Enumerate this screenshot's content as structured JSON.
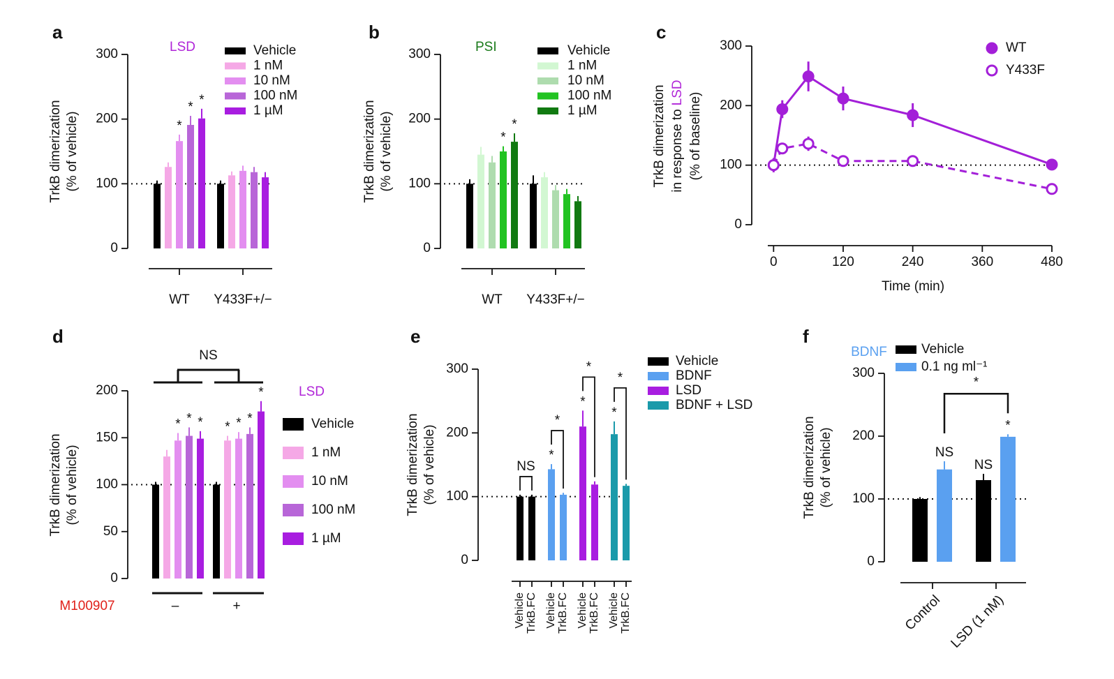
{
  "chart_data": [
    {
      "type": "bar",
      "panel": "a",
      "annotation": "LSD",
      "annotation_color": "#b025d8",
      "ylabel": [
        "TrkB dimerization",
        "(% of vehicle)"
      ],
      "categories": [
        "WT",
        "Y433F+/−"
      ],
      "ylim": [
        0,
        300
      ],
      "yticks": [
        0,
        100,
        200,
        300
      ],
      "reference_line": 100,
      "series": [
        {
          "name": "Vehicle",
          "color": "#000000",
          "values": [
            100,
            100
          ],
          "errors": [
            5,
            5
          ],
          "significance": [
            null,
            null
          ]
        },
        {
          "name": "1 nM",
          "color": "#f5a8e6",
          "values": [
            126,
            113
          ],
          "errors": [
            7,
            6
          ],
          "significance": [
            null,
            null
          ]
        },
        {
          "name": "10 nM",
          "color": "#e38ef0",
          "values": [
            166,
            120
          ],
          "errors": [
            10,
            8
          ],
          "significance": [
            "*",
            null
          ]
        },
        {
          "name": "100 nM",
          "color": "#b866d8",
          "values": [
            191,
            118
          ],
          "errors": [
            14,
            8
          ],
          "significance": [
            "*",
            null
          ]
        },
        {
          "name": "1 µM",
          "color": "#a81de0",
          "values": [
            201,
            110
          ],
          "errors": [
            15,
            8
          ],
          "significance": [
            "*",
            null
          ]
        }
      ]
    },
    {
      "type": "bar",
      "panel": "b",
      "annotation": "PSI",
      "annotation_color": "#1a7a1a",
      "ylabel": [
        "TrkB dimerization",
        "(% of vehicle)"
      ],
      "categories": [
        "WT",
        "Y433F+/−"
      ],
      "ylim": [
        0,
        300
      ],
      "yticks": [
        0,
        100,
        200,
        300
      ],
      "reference_line": 100,
      "series": [
        {
          "name": "Vehicle",
          "color": "#000000",
          "values": [
            100,
            100
          ],
          "errors": [
            7,
            13
          ],
          "significance": [
            null,
            null
          ]
        },
        {
          "name": "1 nM",
          "color": "#d2f7d2",
          "values": [
            145,
            110
          ],
          "errors": [
            12,
            8
          ],
          "significance": [
            null,
            null
          ]
        },
        {
          "name": "10 nM",
          "color": "#aedcae",
          "values": [
            133,
            90
          ],
          "errors": [
            10,
            8
          ],
          "significance": [
            null,
            null
          ]
        },
        {
          "name": "100 nM",
          "color": "#22c322",
          "values": [
            150,
            84
          ],
          "errors": [
            8,
            8
          ],
          "significance": [
            "*",
            null
          ]
        },
        {
          "name": "1 µM",
          "color": "#117a11",
          "values": [
            165,
            73
          ],
          "errors": [
            13,
            8
          ],
          "significance": [
            "*",
            null
          ]
        }
      ]
    },
    {
      "type": "line",
      "panel": "c",
      "ylabel": {
        "lines": [
          "TrkB dimerization",
          "in response to",
          "(% of baseline)"
        ],
        "highlight": "LSD",
        "highlight_color": "#b025d8"
      },
      "xlabel": "Time (min)",
      "x": [
        0,
        15,
        60,
        120,
        240,
        480
      ],
      "xlim": [
        -10,
        480
      ],
      "xticks": [
        0,
        120,
        240,
        360,
        480
      ],
      "ylim": [
        0,
        300
      ],
      "yticks": [
        0,
        100,
        200,
        300
      ],
      "reference_line": 100,
      "legend": "upper right",
      "series": [
        {
          "name": "WT",
          "color": "#a31fd8",
          "line_style": "solid",
          "marker_fill": "filled",
          "values": [
            100,
            194,
            249,
            212,
            184,
            101
          ],
          "errors": [
            12,
            15,
            25,
            20,
            20,
            5
          ]
        },
        {
          "name": "Y433F",
          "color": "#a31fd8",
          "line_style": "dashed",
          "marker_fill": "open",
          "values": [
            100,
            128,
            136,
            107,
            107,
            60
          ],
          "errors": [
            8,
            8,
            12,
            5,
            8,
            4
          ]
        }
      ]
    },
    {
      "type": "bar",
      "panel": "d",
      "annotation": "LSD",
      "annotation_color": "#b025d8",
      "ylabel": [
        "TrkB dimerization",
        "(% of vehicle)"
      ],
      "categories": [
        "–",
        "+"
      ],
      "category_title": "M100907",
      "category_title_color": "#e0201a",
      "bracket_label": "NS",
      "ylim": [
        0,
        200
      ],
      "yticks": [
        0,
        50,
        100,
        150,
        200
      ],
      "reference_line": 100,
      "series": [
        {
          "name": "Vehicle",
          "color": "#000000",
          "values": [
            100,
            100
          ],
          "errors": [
            3,
            3
          ],
          "significance": [
            null,
            null
          ]
        },
        {
          "name": "1 nM",
          "color": "#f5a8e6",
          "values": [
            130,
            147
          ],
          "errors": [
            7,
            5
          ],
          "significance": [
            null,
            "*"
          ]
        },
        {
          "name": "10 nM",
          "color": "#e38ef0",
          "values": [
            147,
            149
          ],
          "errors": [
            8,
            7
          ],
          "significance": [
            "*",
            "*"
          ]
        },
        {
          "name": "100 nM",
          "color": "#b866d8",
          "values": [
            152,
            154
          ],
          "errors": [
            9,
            7
          ],
          "significance": [
            "*",
            "*"
          ]
        },
        {
          "name": "1 µM",
          "color": "#a81de0",
          "values": [
            149,
            178
          ],
          "errors": [
            8,
            11
          ],
          "significance": [
            "*",
            "*"
          ]
        }
      ]
    },
    {
      "type": "bar",
      "panel": "e",
      "ylabel": [
        "TrkB dimerization",
        "(% of vehicle)"
      ],
      "categories": [
        "Vehicle",
        "TrkB.FC"
      ],
      "ylim": [
        0,
        300
      ],
      "yticks": [
        0,
        100,
        200,
        300
      ],
      "reference_line": 100,
      "series": [
        {
          "name": "Vehicle",
          "color": "#000000",
          "values": [
            100,
            100
          ],
          "errors": [
            3,
            3
          ],
          "significance": [
            null,
            null
          ],
          "comparison": "NS"
        },
        {
          "name": "BDNF",
          "color": "#5aa0f0",
          "values": [
            143,
            103
          ],
          "errors": [
            8,
            3
          ],
          "significance": [
            "*",
            null
          ],
          "comparison": "*"
        },
        {
          "name": "LSD",
          "color": "#a81de0",
          "values": [
            210,
            119
          ],
          "errors": [
            25,
            5
          ],
          "significance": [
            "*",
            null
          ],
          "comparison": "*"
        },
        {
          "name": "BDNF + LSD",
          "color": "#1a9aaa",
          "values": [
            198,
            117
          ],
          "errors": [
            20,
            3
          ],
          "significance": [
            "*",
            null
          ],
          "comparison": "*"
        }
      ]
    },
    {
      "type": "bar",
      "panel": "f",
      "legend_title": "BDNF",
      "legend_title_color": "#5aa0f0",
      "ylabel": [
        "TrkB dimerization",
        "(% of vehicle)"
      ],
      "categories": [
        "Control",
        "LSD (1 nM)"
      ],
      "ylim": [
        0,
        300
      ],
      "yticks": [
        0,
        100,
        200,
        300
      ],
      "reference_line": 100,
      "comparison_label": "*",
      "series": [
        {
          "name": "Vehicle",
          "color": "#000000",
          "values": [
            100,
            130
          ],
          "errors": [
            3,
            10
          ],
          "significance": [
            null,
            "NS"
          ]
        },
        {
          "name": "0.1 ng ml⁻¹",
          "color": "#5aa0f0",
          "values": [
            147,
            199
          ],
          "errors": [
            13,
            4
          ],
          "significance": [
            "NS",
            "*"
          ]
        }
      ]
    }
  ]
}
